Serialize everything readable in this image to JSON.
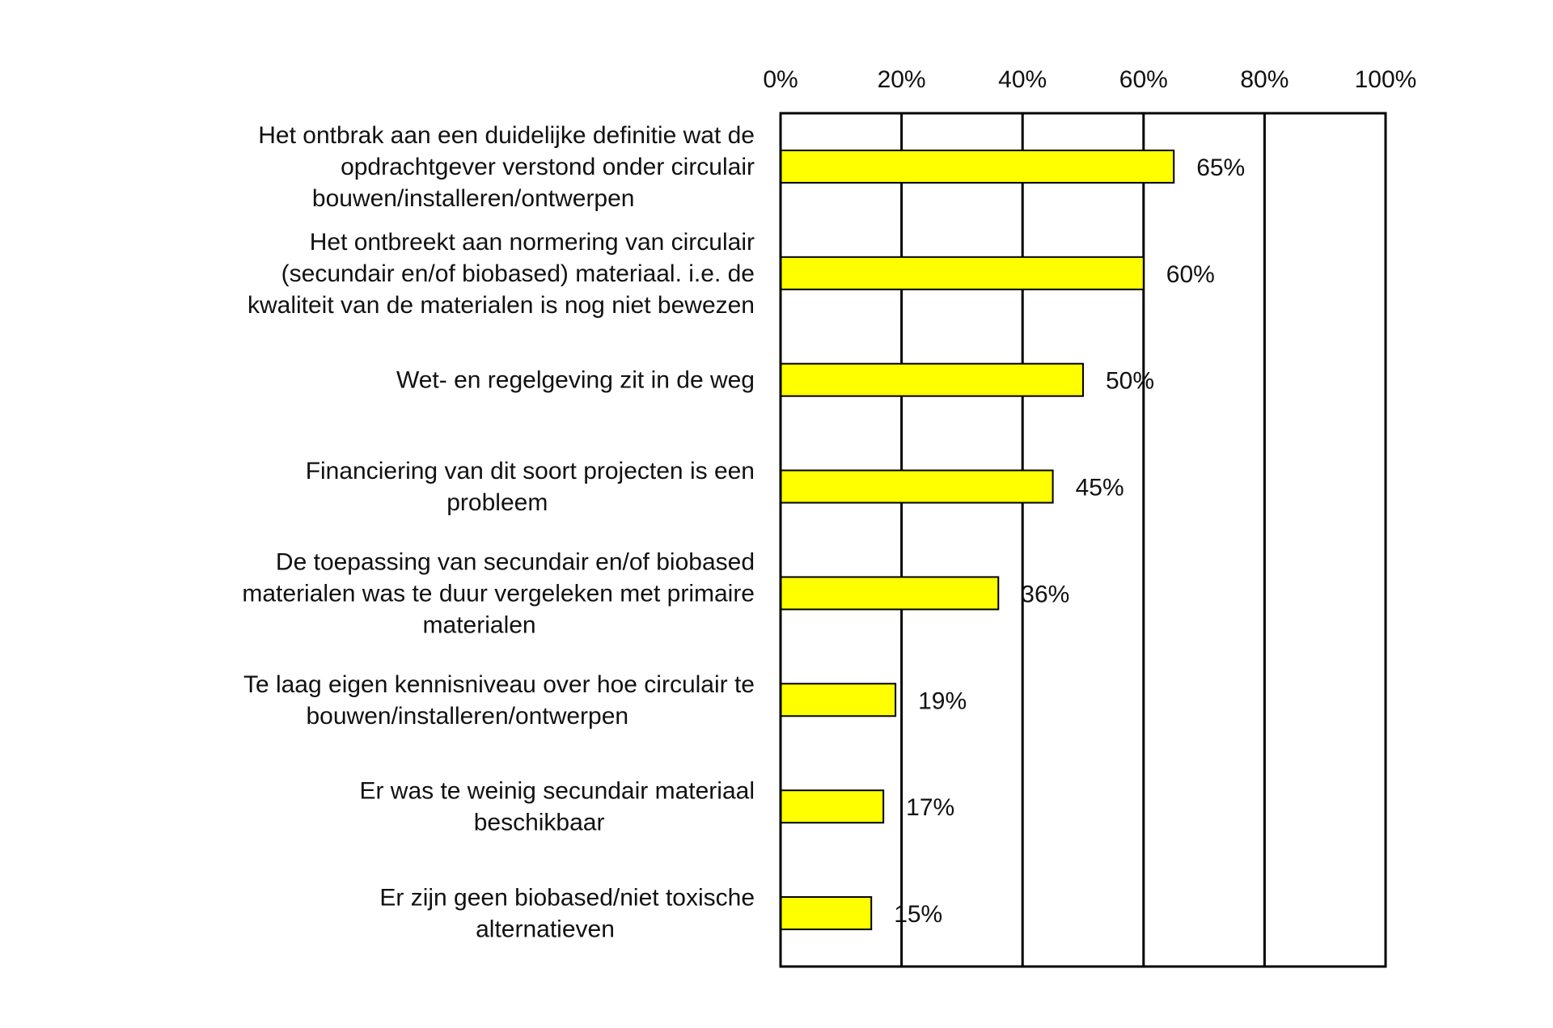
{
  "chart_data": {
    "type": "bar",
    "orientation": "horizontal",
    "title": "",
    "xlabel": "",
    "ylabel": "",
    "xlim": [
      0,
      100
    ],
    "x_ticks": [
      "0%",
      "20%",
      "40%",
      "60%",
      "80%",
      "100%"
    ],
    "x_tick_values": [
      0,
      20,
      40,
      60,
      80,
      100
    ],
    "grid": true,
    "bar_color": "#ffff00",
    "categories": [
      [
        "Het ontbrak aan een duidelijke definitie wat de",
        "opdrachtgever verstond onder circulair",
        "bouwen/installeren/ontwerpen"
      ],
      [
        "Het ontbreekt aan normering van circulair",
        "(secundair en/of biobased) materiaal. i.e. de",
        "kwaliteit van de materialen is nog niet bewezen"
      ],
      [
        "Wet- en regelgeving zit in de weg"
      ],
      [
        "Financiering van dit soort projecten is een",
        "probleem"
      ],
      [
        "De toepassing van secundair en/of biobased",
        "materialen was te duur vergeleken met primaire",
        "materialen"
      ],
      [
        "Te laag eigen kennisniveau over hoe circulair te",
        "bouwen/installeren/ontwerpen"
      ],
      [
        "Er was te weinig secundair materiaal",
        "beschikbaar"
      ],
      [
        "Er zijn geen biobased/niet toxische",
        "alternatieven"
      ]
    ],
    "values": [
      65,
      60,
      50,
      45,
      36,
      19,
      17,
      15
    ],
    "data_labels": [
      "65%",
      "60%",
      "50%",
      "45%",
      "36%",
      "19%",
      "17%",
      "15%"
    ]
  }
}
